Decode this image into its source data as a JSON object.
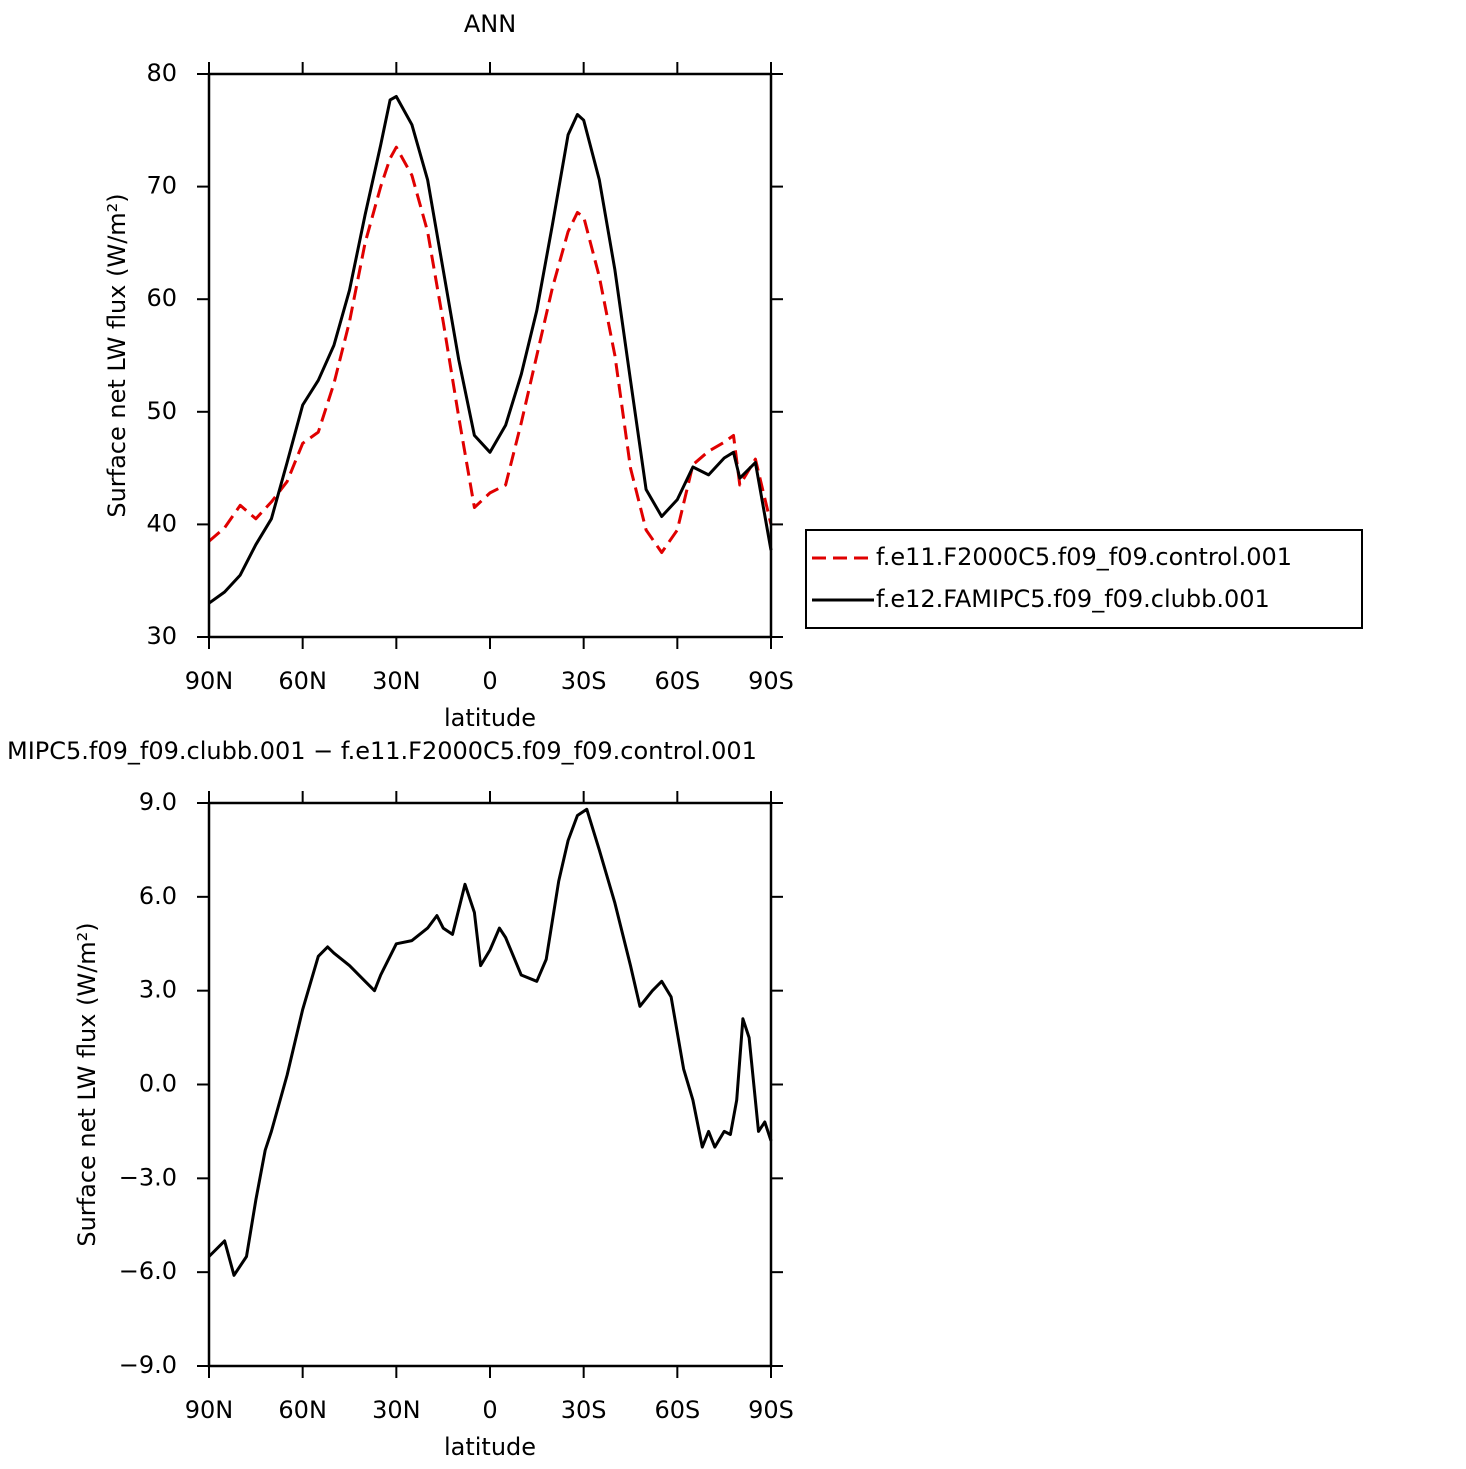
{
  "chart_data": [
    {
      "type": "line",
      "title": "ANN",
      "xlabel": "latitude",
      "ylabel": "Surface net LW flux (W/m²)",
      "x": [
        90,
        85,
        80,
        75,
        70,
        65,
        60,
        55,
        50,
        45,
        40,
        35,
        32,
        30,
        25,
        20,
        15,
        10,
        5,
        0,
        -5,
        -10,
        -15,
        -20,
        -25,
        -28,
        -30,
        -35,
        -40,
        -45,
        -50,
        -55,
        -60,
        -65,
        -70,
        -75,
        -78,
        -80,
        -85,
        -90
      ],
      "series": [
        {
          "name": "f.e11.F2000C5.f09_f09.control.001",
          "color": "#e00000",
          "dash": "dashed",
          "values": [
            38.5,
            39.7,
            41.7,
            40.5,
            42.0,
            43.8,
            47.2,
            48.2,
            52.5,
            58.0,
            65.0,
            70.0,
            72.5,
            73.5,
            71.0,
            66.0,
            58.0,
            49.5,
            41.5,
            42.8,
            43.5,
            49.0,
            55.0,
            61.0,
            66.0,
            67.7,
            67.3,
            62.0,
            55.0,
            45.0,
            39.5,
            37.5,
            39.5,
            45.3,
            46.5,
            47.3,
            47.9,
            43.5,
            45.8,
            40.0
          ]
        },
        {
          "name": "f.e12.FAMIPC5.f09_f09.clubb.001",
          "color": "#000000",
          "dash": "solid",
          "values": [
            33.0,
            34.0,
            35.5,
            38.2,
            40.5,
            45.5,
            50.6,
            52.8,
            55.9,
            60.8,
            67.5,
            73.7,
            77.7,
            78.0,
            75.5,
            70.6,
            62.6,
            54.6,
            47.9,
            46.4,
            48.8,
            53.3,
            59.0,
            66.6,
            74.6,
            76.4,
            75.9,
            70.6,
            62.6,
            52.8,
            43.1,
            40.7,
            42.2,
            45.1,
            44.4,
            45.9,
            46.4,
            44.1,
            45.5,
            37.7
          ]
        }
      ],
      "xlim": [
        90,
        -90
      ],
      "xticks": [
        {
          "value": 90,
          "label": "90N"
        },
        {
          "value": 60,
          "label": "60N"
        },
        {
          "value": 30,
          "label": "30N"
        },
        0,
        {
          "value": -30,
          "label": "30S"
        },
        {
          "value": -60,
          "label": "60S"
        },
        {
          "value": -90,
          "label": "90S"
        }
      ],
      "ylim": [
        30,
        80
      ],
      "yticks": [
        30,
        40,
        50,
        60,
        70,
        80
      ],
      "legend": "right"
    },
    {
      "type": "line",
      "title": "MIPC5.f09_f09.clubb.001 − f.e11.F2000C5.f09_f09.control.001",
      "xlabel": "latitude",
      "ylabel": "Surface net LW flux (W/m²)",
      "x": [
        90,
        85,
        82,
        78,
        75,
        72,
        70,
        65,
        60,
        55,
        52,
        50,
        45,
        40,
        37,
        35,
        30,
        25,
        20,
        17,
        15,
        12,
        8,
        5,
        3,
        0,
        -3,
        -5,
        -10,
        -15,
        -18,
        -22,
        -25,
        -28,
        -31,
        -35,
        -40,
        -45,
        -48,
        -52,
        -55,
        -58,
        -62,
        -65,
        -68,
        -70,
        -72,
        -75,
        -77,
        -79,
        -81,
        -83,
        -86,
        -88,
        -90
      ],
      "values": [
        -5.5,
        -5.0,
        -6.1,
        -5.5,
        -3.7,
        -2.1,
        -1.5,
        0.3,
        2.4,
        4.1,
        4.4,
        4.2,
        3.8,
        3.3,
        3.0,
        3.5,
        4.5,
        4.6,
        5.0,
        5.4,
        5.0,
        4.8,
        6.4,
        5.5,
        3.8,
        4.3,
        5.0,
        4.7,
        3.5,
        3.3,
        4.0,
        6.5,
        7.8,
        8.6,
        8.8,
        7.5,
        5.8,
        3.8,
        2.5,
        3.0,
        3.3,
        2.8,
        0.5,
        -0.5,
        -2.0,
        -1.5,
        -2.0,
        -1.5,
        -1.6,
        -0.5,
        2.1,
        1.5,
        -1.5,
        -1.2,
        -1.8
      ],
      "color": "#000000",
      "dash": "solid",
      "xlim": [
        90,
        -90
      ],
      "xticks": [
        {
          "value": 90,
          "label": "90N"
        },
        {
          "value": 60,
          "label": "60N"
        },
        {
          "value": 30,
          "label": "30N"
        },
        0,
        {
          "value": -30,
          "label": "30S"
        },
        {
          "value": -60,
          "label": "60S"
        },
        {
          "value": -90,
          "label": "90S"
        }
      ],
      "ylim": [
        -9,
        9
      ],
      "yticks": [
        {
          "value": -9,
          "label": "−9.0"
        },
        {
          "value": -6,
          "label": "−6.0"
        },
        {
          "value": -3,
          "label": "−3.0"
        },
        {
          "value": 0,
          "label": "0.0"
        },
        {
          "value": 3,
          "label": "3.0"
        },
        {
          "value": 6,
          "label": "6.0"
        },
        {
          "value": 9,
          "label": "9.0"
        }
      ]
    }
  ]
}
